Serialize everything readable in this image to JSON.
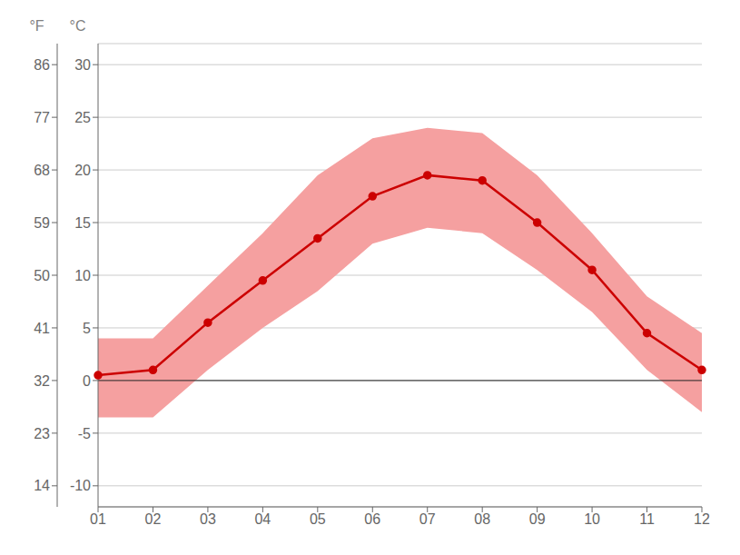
{
  "chart_data": {
    "type": "line",
    "categories": [
      "01",
      "02",
      "03",
      "04",
      "05",
      "06",
      "07",
      "08",
      "09",
      "10",
      "11",
      "12"
    ],
    "values": [
      0.5,
      1.0,
      5.5,
      9.5,
      13.5,
      17.5,
      19.5,
      19.0,
      15.0,
      10.5,
      4.5,
      1.0
    ],
    "color": "#cc0000",
    "marker": "circle",
    "band": {
      "low": [
        -3.5,
        -3.5,
        1.0,
        5.0,
        8.5,
        13.0,
        14.5,
        14.0,
        10.5,
        6.5,
        1.0,
        -3.0
      ],
      "high": [
        4.0,
        4.0,
        9.0,
        14.0,
        19.5,
        23.0,
        24.0,
        23.5,
        19.5,
        14.0,
        8.0,
        4.5
      ],
      "color": "#f5a0a0"
    },
    "hline": {
      "value": 0,
      "color": "#222222"
    },
    "y_label": "°C",
    "ylim": [
      -12,
      32
    ],
    "yticks": [
      -10,
      -5,
      0,
      5,
      10,
      15,
      20,
      25,
      30
    ],
    "y2_label": "°F",
    "y2lim": [
      10.4,
      89.6
    ],
    "y2ticks": [
      14,
      23,
      32,
      41,
      50,
      59,
      68,
      77,
      86
    ],
    "grid": true
  }
}
